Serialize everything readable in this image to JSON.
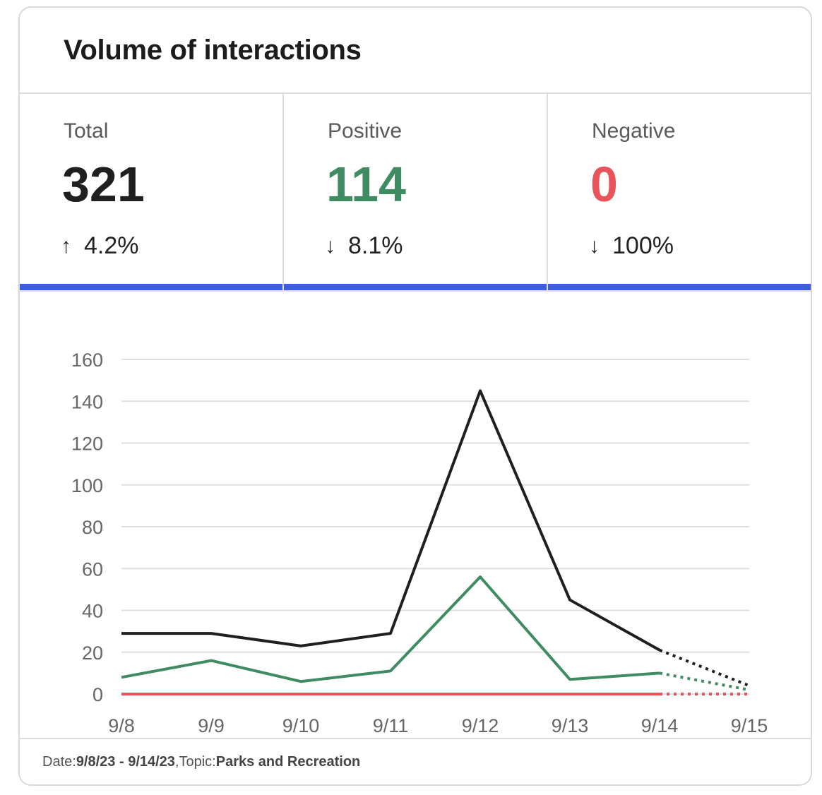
{
  "header": {
    "title": "Volume of interactions"
  },
  "stats": [
    {
      "label": "Total",
      "value": "321",
      "arrow": "↑",
      "change": "4.2%",
      "color": "#1f1f1f"
    },
    {
      "label": "Positive",
      "value": "114",
      "arrow": "↓",
      "change": "8.1%",
      "color": "#3f8b62"
    },
    {
      "label": "Negative",
      "value": "0",
      "arrow": "↓",
      "change": "100%",
      "color": "#e8545a"
    }
  ],
  "accent_color": "#3d5be5",
  "chart_data": {
    "type": "line",
    "categories": [
      "9/8",
      "9/9",
      "9/10",
      "9/11",
      "9/12",
      "9/13",
      "9/14",
      "9/15"
    ],
    "ylim": [
      0,
      160
    ],
    "yticks": [
      0,
      20,
      40,
      60,
      80,
      100,
      120,
      140,
      160
    ],
    "grid": true,
    "series": [
      {
        "key": "total",
        "color": "#1f1f1f",
        "values": [
          29,
          29,
          23,
          29,
          145,
          45,
          21,
          4
        ],
        "dashed_from_index": 6
      },
      {
        "key": "positive",
        "color": "#3f8b62",
        "values": [
          8,
          16,
          6,
          11,
          56,
          7,
          10,
          2
        ],
        "dashed_from_index": 6
      },
      {
        "key": "negative",
        "color": "#e8545a",
        "values": [
          0,
          0,
          0,
          0,
          0,
          0,
          0,
          0
        ],
        "dashed_from_index": 6
      }
    ]
  },
  "footer": {
    "date_label": "Date: ",
    "date_value": "9/8/23 - 9/14/23",
    "sep": ", ",
    "topic_label": "Topic: ",
    "topic_value": "Parks and Recreation"
  }
}
